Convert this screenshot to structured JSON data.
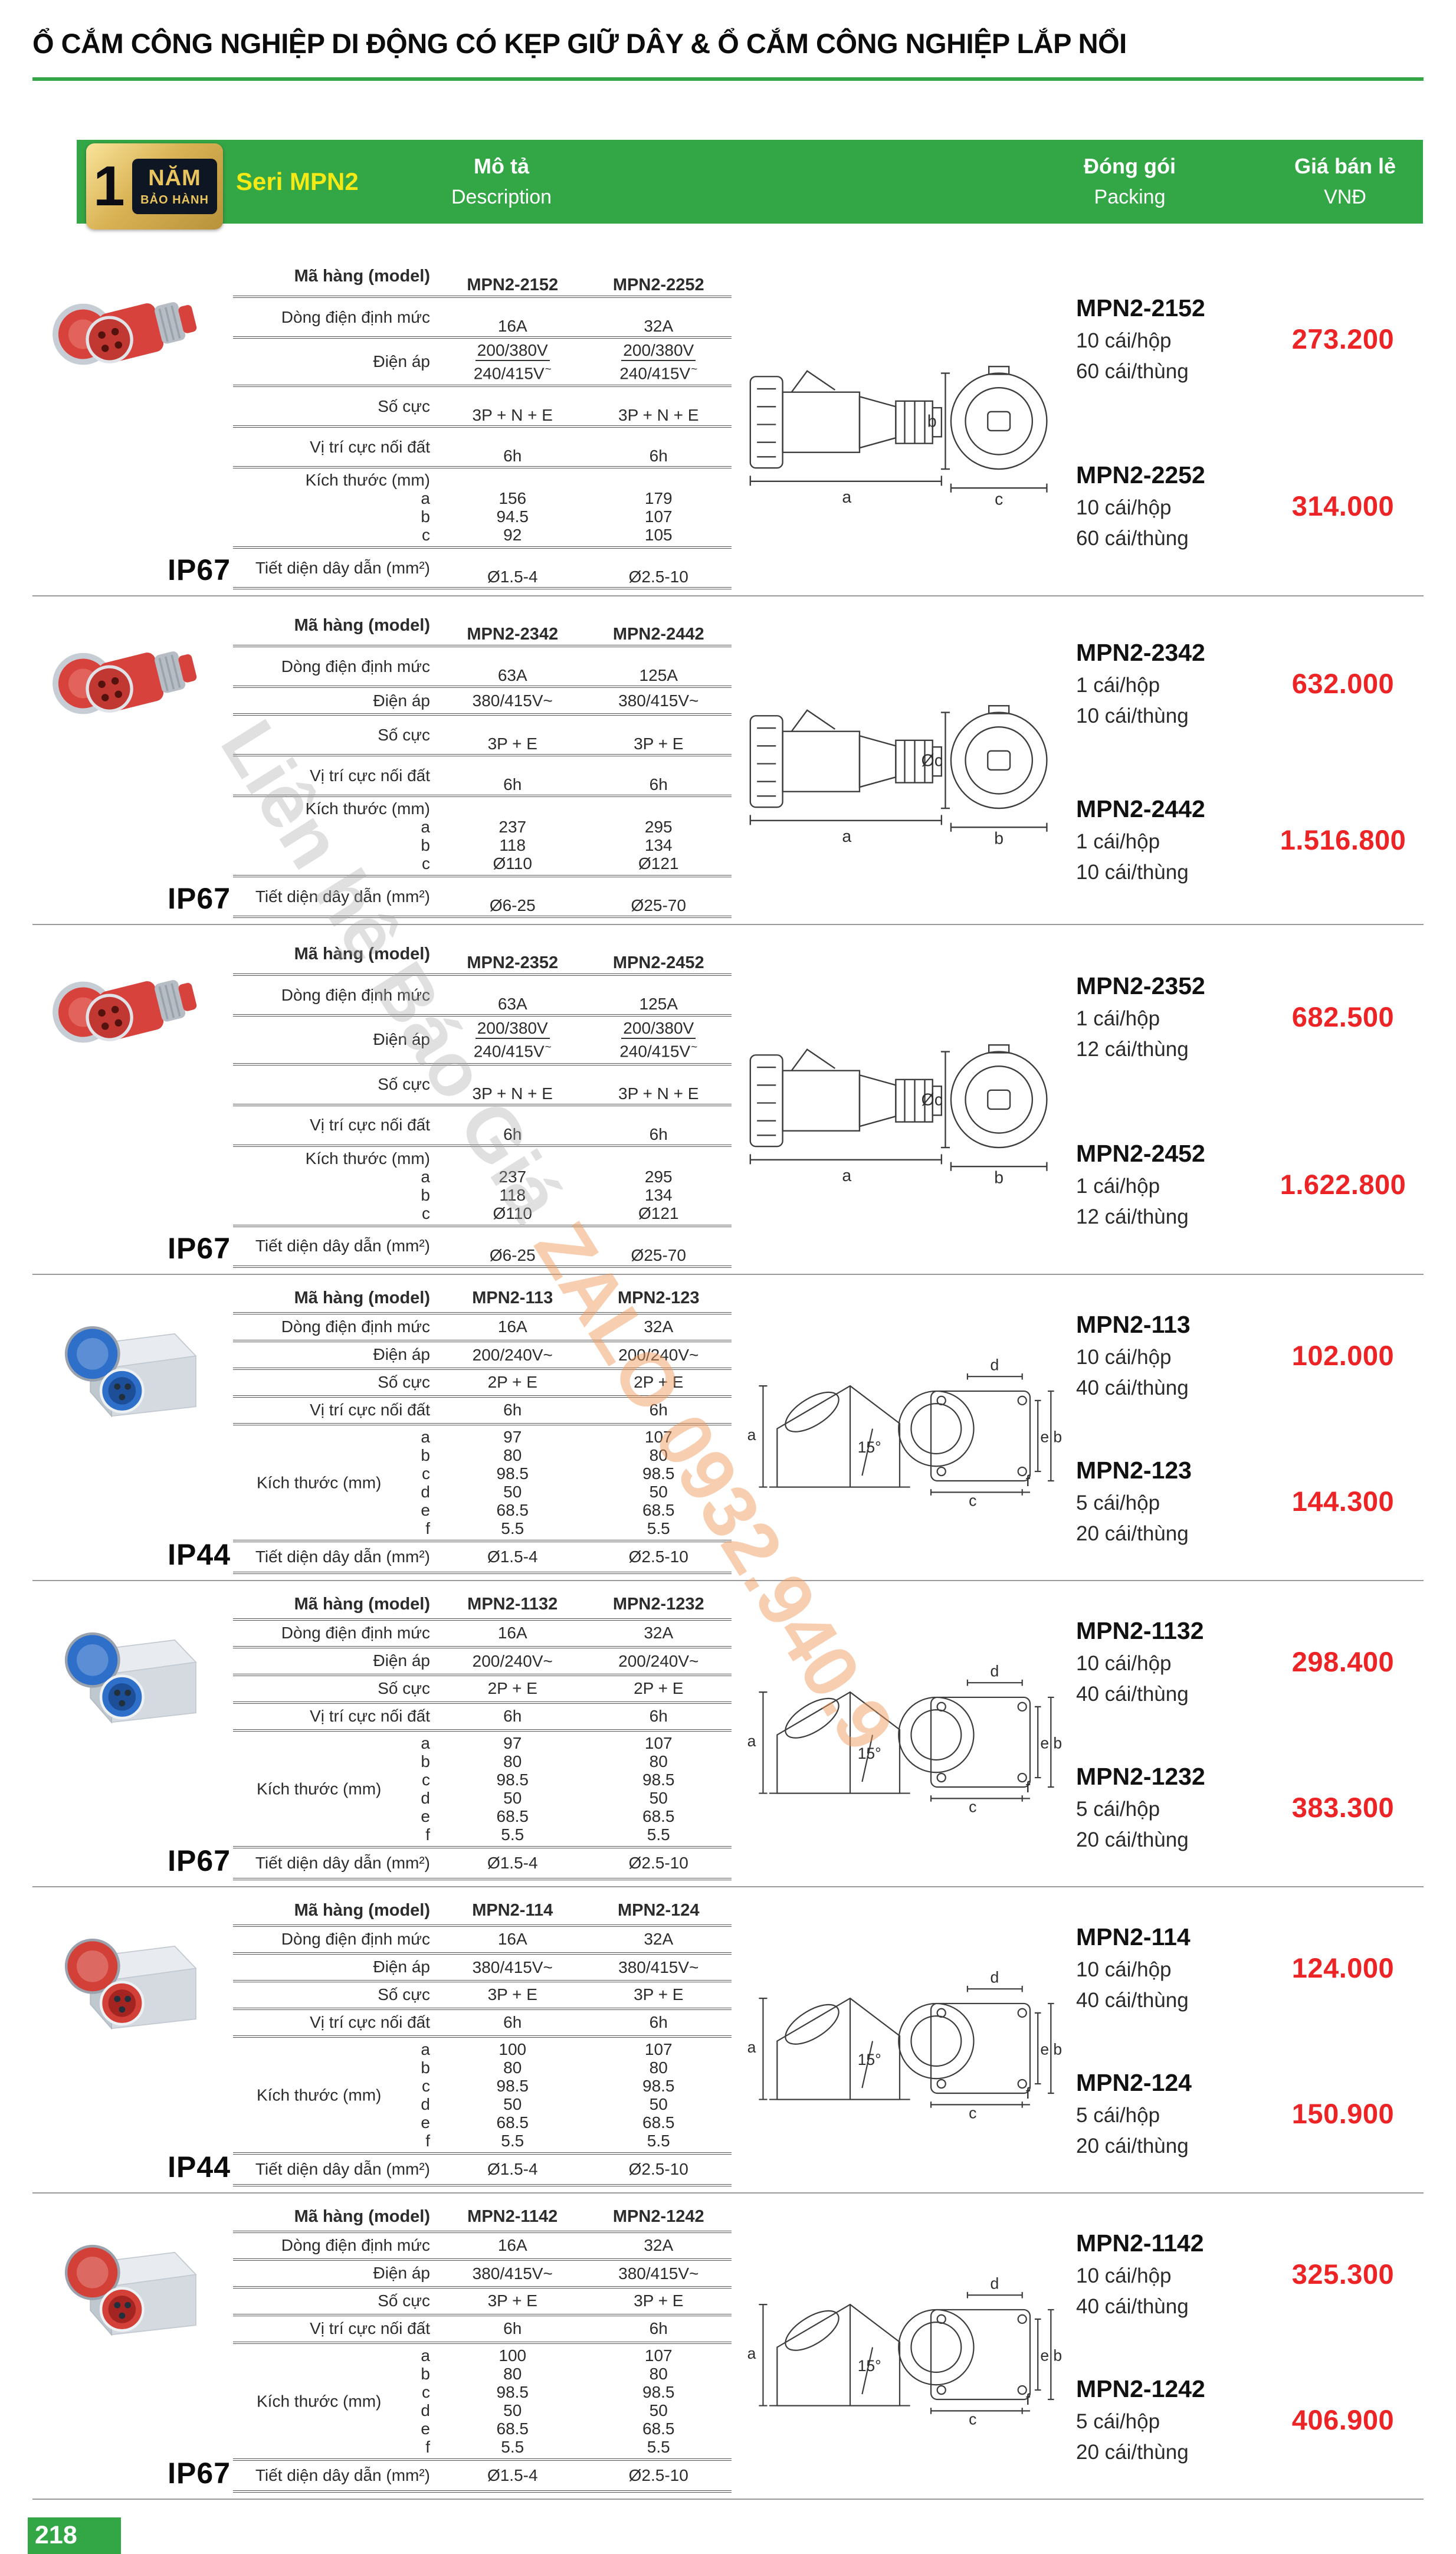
{
  "page": {
    "title": "Ổ CẮM CÔNG NGHIỆP DI ĐỘNG CÓ KẸP GIỮ DÂY & Ổ CẮM CÔNG NGHIỆP LẮP NỔI",
    "page_number": "218",
    "accent_green": "#33a646",
    "price_red": "#ec2426"
  },
  "header": {
    "badge_number": "1",
    "badge_line1": "NĂM",
    "badge_line2": "BẢO HÀNH",
    "series": "Seri MPN2",
    "desc_vi": "Mô tả",
    "desc_en": "Description",
    "packing_vi": "Đóng gói",
    "packing_en": "Packing",
    "price_vi": "Giá bán lẻ",
    "price_en": "VNĐ"
  },
  "labels": {
    "model": "Mã hàng (model)",
    "current": "Dòng điện định mức",
    "voltage": "Điện áp",
    "poles": "Số cực",
    "earth": "Vị trí cực nối đất",
    "dims": "Kích thước (mm)",
    "wire": "Tiết diện dây dẫn (mm²)",
    "draw": {
      "a": "a",
      "b": "b",
      "c": "c",
      "d": "d",
      "e": "e",
      "f": "f",
      "angle": "15°"
    }
  },
  "watermark": {
    "part1": "Liên hệ Báo Giá ",
    "part2": "ZALO 0932.940.9"
  },
  "blocks": [
    {
      "ip": "IP67",
      "photo": "portable-red",
      "drawing": "connector",
      "dl_v": "b",
      "dl_h": "c",
      "models": [
        "MPN2-2152",
        "MPN2-2252"
      ],
      "current": [
        "16A",
        "32A"
      ],
      "voltage": {
        "top": "200/380V",
        "bottom": "240/415V",
        "tilde": "~"
      },
      "poles": [
        "3P + N + E",
        "3P + N + E"
      ],
      "earth": [
        "6h",
        "6h"
      ],
      "dims": {
        "letters": [
          "a",
          "b",
          "c"
        ],
        "col1": [
          "156",
          "94.5",
          "92"
        ],
        "col2": [
          "179",
          "107",
          "105"
        ]
      },
      "wire": [
        "Ø1.5-4",
        "Ø2.5-10"
      ],
      "entries": [
        {
          "code": "MPN2-2152",
          "pack_box": "10 cái/hộp",
          "pack_carton": "60 cái/thùng",
          "price": "273.200"
        },
        {
          "code": "MPN2-2252",
          "pack_box": "10 cái/hộp",
          "pack_carton": "60 cái/thùng",
          "price": "314.000"
        }
      ]
    },
    {
      "ip": "IP67",
      "photo": "portable-red",
      "drawing": "connector",
      "dl_v": "Øc",
      "dl_h": "b",
      "models": [
        "MPN2-2342",
        "MPN2-2442"
      ],
      "current": [
        "63A",
        "125A"
      ],
      "voltage": {
        "top": "380/415V~",
        "bottom": "",
        "tilde": ""
      },
      "poles": [
        "3P + E",
        "3P + E"
      ],
      "earth": [
        "6h",
        "6h"
      ],
      "dims": {
        "letters": [
          "a",
          "b",
          "c"
        ],
        "col1": [
          "237",
          "118",
          "Ø110"
        ],
        "col2": [
          "295",
          "134",
          "Ø121"
        ]
      },
      "wire": [
        "Ø6-25",
        "Ø25-70"
      ],
      "entries": [
        {
          "code": "MPN2-2342",
          "pack_box": "1 cái/hộp",
          "pack_carton": "10 cái/thùng",
          "price": "632.000"
        },
        {
          "code": "MPN2-2442",
          "pack_box": "1 cái/hộp",
          "pack_carton": "10 cái/thùng",
          "price": "1.516.800"
        }
      ]
    },
    {
      "ip": "IP67",
      "photo": "portable-red",
      "drawing": "connector",
      "dl_v": "Øc",
      "dl_h": "b",
      "models": [
        "MPN2-2352",
        "MPN2-2452"
      ],
      "current": [
        "63A",
        "125A"
      ],
      "voltage": {
        "top": "200/380V",
        "bottom": "240/415V",
        "tilde": "~"
      },
      "poles": [
        "3P + N + E",
        "3P + N + E"
      ],
      "earth": [
        "6h",
        "6h"
      ],
      "dims": {
        "letters": [
          "a",
          "b",
          "c"
        ],
        "col1": [
          "237",
          "118",
          "Ø110"
        ],
        "col2": [
          "295",
          "134",
          "Ø121"
        ]
      },
      "wire": [
        "Ø6-25",
        "Ø25-70"
      ],
      "entries": [
        {
          "code": "MPN2-2352",
          "pack_box": "1 cái/hộp",
          "pack_carton": "12 cái/thùng",
          "price": "682.500"
        },
        {
          "code": "MPN2-2452",
          "pack_box": "1 cái/hộp",
          "pack_carton": "12 cái/thùng",
          "price": "1.622.800"
        }
      ]
    },
    {
      "ip": "IP44",
      "photo": "wall-blue",
      "drawing": "wall",
      "dl_v": "",
      "dl_h": "",
      "models": [
        "MPN2-113",
        "MPN2-123"
      ],
      "current": [
        "16A",
        "32A"
      ],
      "voltage": {
        "top": "200/240V~",
        "bottom": "",
        "tilde": ""
      },
      "poles": [
        "2P + E",
        "2P + E"
      ],
      "earth": [
        "6h",
        "6h"
      ],
      "dims": {
        "letters": [
          "a",
          "b",
          "c",
          "d",
          "e",
          "f"
        ],
        "col1": [
          "97",
          "80",
          "98.5",
          "50",
          "68.5",
          "5.5"
        ],
        "col2": [
          "107",
          "80",
          "98.5",
          "50",
          "68.5",
          "5.5"
        ]
      },
      "wire": [
        "Ø1.5-4",
        "Ø2.5-10"
      ],
      "entries": [
        {
          "code": "MPN2-113",
          "pack_box": "10 cái/hộp",
          "pack_carton": "40 cái/thùng",
          "price": "102.000"
        },
        {
          "code": "MPN2-123",
          "pack_box": "5 cái/hộp",
          "pack_carton": "20 cái/thùng",
          "price": "144.300"
        }
      ]
    },
    {
      "ip": "IP67",
      "photo": "wall-blue",
      "drawing": "wall",
      "dl_v": "",
      "dl_h": "",
      "models": [
        "MPN2-1132",
        "MPN2-1232"
      ],
      "current": [
        "16A",
        "32A"
      ],
      "voltage": {
        "top": "200/240V~",
        "bottom": "",
        "tilde": ""
      },
      "poles": [
        "2P + E",
        "2P + E"
      ],
      "earth": [
        "6h",
        "6h"
      ],
      "dims": {
        "letters": [
          "a",
          "b",
          "c",
          "d",
          "e",
          "f"
        ],
        "col1": [
          "97",
          "80",
          "98.5",
          "50",
          "68.5",
          "5.5"
        ],
        "col2": [
          "107",
          "80",
          "98.5",
          "50",
          "68.5",
          "5.5"
        ]
      },
      "wire": [
        "Ø1.5-4",
        "Ø2.5-10"
      ],
      "entries": [
        {
          "code": "MPN2-1132",
          "pack_box": "10 cái/hộp",
          "pack_carton": "40 cái/thùng",
          "price": "298.400"
        },
        {
          "code": "MPN2-1232",
          "pack_box": "5 cái/hộp",
          "pack_carton": "20 cái/thùng",
          "price": "383.300"
        }
      ]
    },
    {
      "ip": "IP44",
      "photo": "wall-red",
      "drawing": "wall",
      "dl_v": "",
      "dl_h": "",
      "models": [
        "MPN2-114",
        "MPN2-124"
      ],
      "current": [
        "16A",
        "32A"
      ],
      "voltage": {
        "top": "380/415V~",
        "bottom": "",
        "tilde": ""
      },
      "poles": [
        "3P + E",
        "3P + E"
      ],
      "earth": [
        "6h",
        "6h"
      ],
      "dims": {
        "letters": [
          "a",
          "b",
          "c",
          "d",
          "e",
          "f"
        ],
        "col1": [
          "100",
          "80",
          "98.5",
          "50",
          "68.5",
          "5.5"
        ],
        "col2": [
          "107",
          "80",
          "98.5",
          "50",
          "68.5",
          "5.5"
        ]
      },
      "wire": [
        "Ø1.5-4",
        "Ø2.5-10"
      ],
      "entries": [
        {
          "code": "MPN2-114",
          "pack_box": "10 cái/hộp",
          "pack_carton": "40 cái/thùng",
          "price": "124.000"
        },
        {
          "code": "MPN2-124",
          "pack_box": "5 cái/hộp",
          "pack_carton": "20 cái/thùng",
          "price": "150.900"
        }
      ]
    },
    {
      "ip": "IP67",
      "photo": "wall-red",
      "drawing": "wall",
      "dl_v": "",
      "dl_h": "",
      "models": [
        "MPN2-1142",
        "MPN2-1242"
      ],
      "current": [
        "16A",
        "32A"
      ],
      "voltage": {
        "top": "380/415V~",
        "bottom": "",
        "tilde": ""
      },
      "poles": [
        "3P + E",
        "3P + E"
      ],
      "earth": [
        "6h",
        "6h"
      ],
      "dims": {
        "letters": [
          "a",
          "b",
          "c",
          "d",
          "e",
          "f"
        ],
        "col1": [
          "100",
          "80",
          "98.5",
          "50",
          "68.5",
          "5.5"
        ],
        "col2": [
          "107",
          "80",
          "98.5",
          "50",
          "68.5",
          "5.5"
        ]
      },
      "wire": [
        "Ø1.5-4",
        "Ø2.5-10"
      ],
      "entries": [
        {
          "code": "MPN2-1142",
          "pack_box": "10 cái/hộp",
          "pack_carton": "40 cái/thùng",
          "price": "325.300"
        },
        {
          "code": "MPN2-1242",
          "pack_box": "5 cái/hộp",
          "pack_carton": "20 cái/thùng",
          "price": "406.900"
        }
      ]
    }
  ]
}
